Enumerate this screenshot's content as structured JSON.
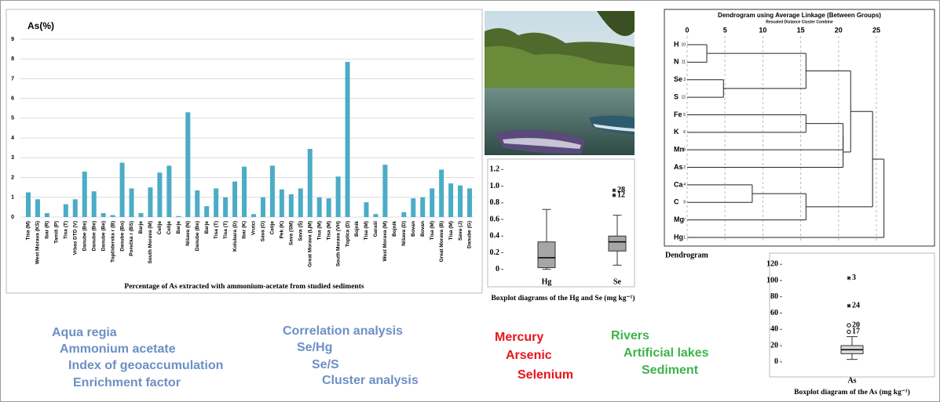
{
  "chart_data": [
    {
      "type": "bar",
      "title": "As(%)",
      "caption": "Percentage of As extracted with ammonium-acetate from studied sediments",
      "categories": [
        "Tisa (M)",
        "West Morava (KS)",
        "Ibar (R)",
        "Tamiš (P)",
        "Tisa (T)",
        "Vrbas DTD (V)",
        "Danube (Be)",
        "Danube (Be)",
        "Danube (Be)",
        "Topčiderska r (B)",
        "Danube (Bo)",
        "Porečka r (BS)",
        "Barje",
        "South Morava (M)",
        "Ćelije",
        "Ćelije",
        "Barje",
        "Nišava (N)",
        "Danube (Be)",
        "Barje",
        "Tisa (T)",
        "Tisa (T)",
        "Kolubara (D)",
        "Ibar (K)",
        "Vrutci",
        "Sava (O)",
        "Ćelije",
        "Pek (K)",
        "Sava (SM)",
        "Sava (Š)",
        "Great Morava (LjM)",
        "Tisa (M)",
        "Tisa (M)",
        "South Morava (VH)",
        "Toplica (D)",
        "Bojnik",
        "Tisa (M)",
        "Garaši",
        "West Morava (M)",
        "Bojnik",
        "Nišava (D)",
        "Bovan",
        "Bovan",
        "Tisa (M)",
        "Great Morava (B)",
        "Tisa (M)",
        "Sava (J)",
        "Danube (G)"
      ],
      "values": [
        1.25,
        0.9,
        0.2,
        0,
        0.65,
        0.9,
        2.3,
        1.3,
        0.2,
        0.1,
        2.75,
        1.45,
        0.2,
        1.5,
        2.25,
        2.6,
        0.05,
        5.3,
        1.35,
        0.55,
        1.45,
        1.0,
        1.8,
        2.55,
        0.15,
        1.0,
        2.6,
        1.4,
        1.15,
        1.45,
        3.45,
        1.0,
        0.95,
        2.05,
        7.85,
        0,
        0.75,
        0.15,
        2.65,
        0,
        0.25,
        0.95,
        1.0,
        1.45,
        2.4,
        1.7,
        1.6,
        1.45
      ],
      "color": "#4bacc6",
      "ylim": [
        0,
        9
      ],
      "yticks": [
        0,
        1,
        2,
        3,
        4,
        5,
        6,
        7,
        8,
        9
      ],
      "grid": true
    },
    {
      "type": "box",
      "caption": "Boxplot diagrams of the Hg and Se (mg kg⁻¹)",
      "categories": [
        "Hg",
        "Se"
      ],
      "boxes": [
        {
          "whislo": 0,
          "q1": 0.02,
          "med": 0.14,
          "q3": 0.33,
          "whishi": 0.72,
          "fliers": []
        },
        {
          "whislo": 0.05,
          "q1": 0.22,
          "med": 0.33,
          "q3": 0.4,
          "whishi": 0.65,
          "fliers": [
            {
              "value": 0.95,
              "label": "28",
              "marker": "star"
            },
            {
              "value": 0.89,
              "label": "12",
              "marker": "star"
            }
          ]
        }
      ],
      "color": "#a6a6a6",
      "ylim": [
        -0.05,
        1.25
      ],
      "yticks": [
        0,
        0.2,
        0.4,
        0.6,
        0.8,
        {
          "value": 1,
          "label": "1.0"
        },
        1.2
      ]
    },
    {
      "type": "dendrogram",
      "title": "Dendrogram using Average Linkage (Between Groups)",
      "subtitle": "Rescaled Distance Cluster Combine",
      "caption": "Dendrogram",
      "leaves": [
        "H",
        "N",
        "Se",
        "S",
        "Fe",
        "K",
        "Mn",
        "As",
        "Ca",
        "C",
        "Mg",
        "Hg"
      ],
      "case_numbers": [
        10,
        11,
        3,
        12,
        5,
        6,
        8,
        2,
        4,
        9,
        7,
        1
      ],
      "merges": [
        {
          "a": 0,
          "b": 1,
          "d": 2.6
        },
        {
          "a": 2,
          "b": 3,
          "d": 4.8
        },
        {
          "a": 12,
          "b": 13,
          "d": 15.7
        },
        {
          "a": 4,
          "b": 5,
          "d": 15.7
        },
        {
          "a": 15,
          "b": 6,
          "d": 20.6
        },
        {
          "a": 16,
          "b": 7,
          "d": 20.6
        },
        {
          "a": 8,
          "b": 9,
          "d": 8.6
        },
        {
          "a": 18,
          "b": 10,
          "d": 15.7
        },
        {
          "a": 14,
          "b": 17,
          "d": 21.6
        },
        {
          "a": 20,
          "b": 19,
          "d": 24.5
        },
        {
          "a": 21,
          "b": 11,
          "d": 26
        }
      ],
      "xlim": [
        0,
        26.5
      ],
      "xticks": [
        0,
        5,
        10,
        15,
        20,
        25
      ],
      "grid": true
    },
    {
      "type": "box",
      "caption": "Boxplot diagram of the As (mg kg⁻¹)",
      "categories": [
        "As"
      ],
      "boxes": [
        {
          "whislo": 3,
          "q1": 10,
          "med": 15,
          "q3": 20,
          "whishi": 31,
          "fliers": [
            {
              "value": 103,
              "label": "3",
              "marker": "star"
            },
            {
              "value": 69,
              "label": "24",
              "marker": "star"
            },
            {
              "value": 45,
              "label": "20",
              "marker": "circle"
            },
            {
              "value": 37,
              "label": "17",
              "marker": "circle"
            }
          ]
        }
      ],
      "color": "#d9d9d9",
      "ylim": [
        -6,
        126
      ],
      "yticks": [
        0,
        20,
        40,
        60,
        80,
        100,
        120
      ]
    }
  ],
  "keywords": [
    {
      "color": "#6d8fc5",
      "items": [
        "Aqua regia",
        "Ammonium acetate",
        "Index of geoaccumulation",
        "Enrichment factor"
      ]
    },
    {
      "color": "#6d8fc5",
      "items": [
        "Correlation analysis",
        "Se/Hg",
        "Se/S",
        "Cluster analysis"
      ]
    },
    {
      "color": "#e8141b",
      "items": [
        "Mercury",
        "Arsenic",
        "Selenium"
      ]
    },
    {
      "color": "#3db34a",
      "items": [
        "Rivers",
        "Artificial lakes",
        "Sediment"
      ]
    }
  ]
}
